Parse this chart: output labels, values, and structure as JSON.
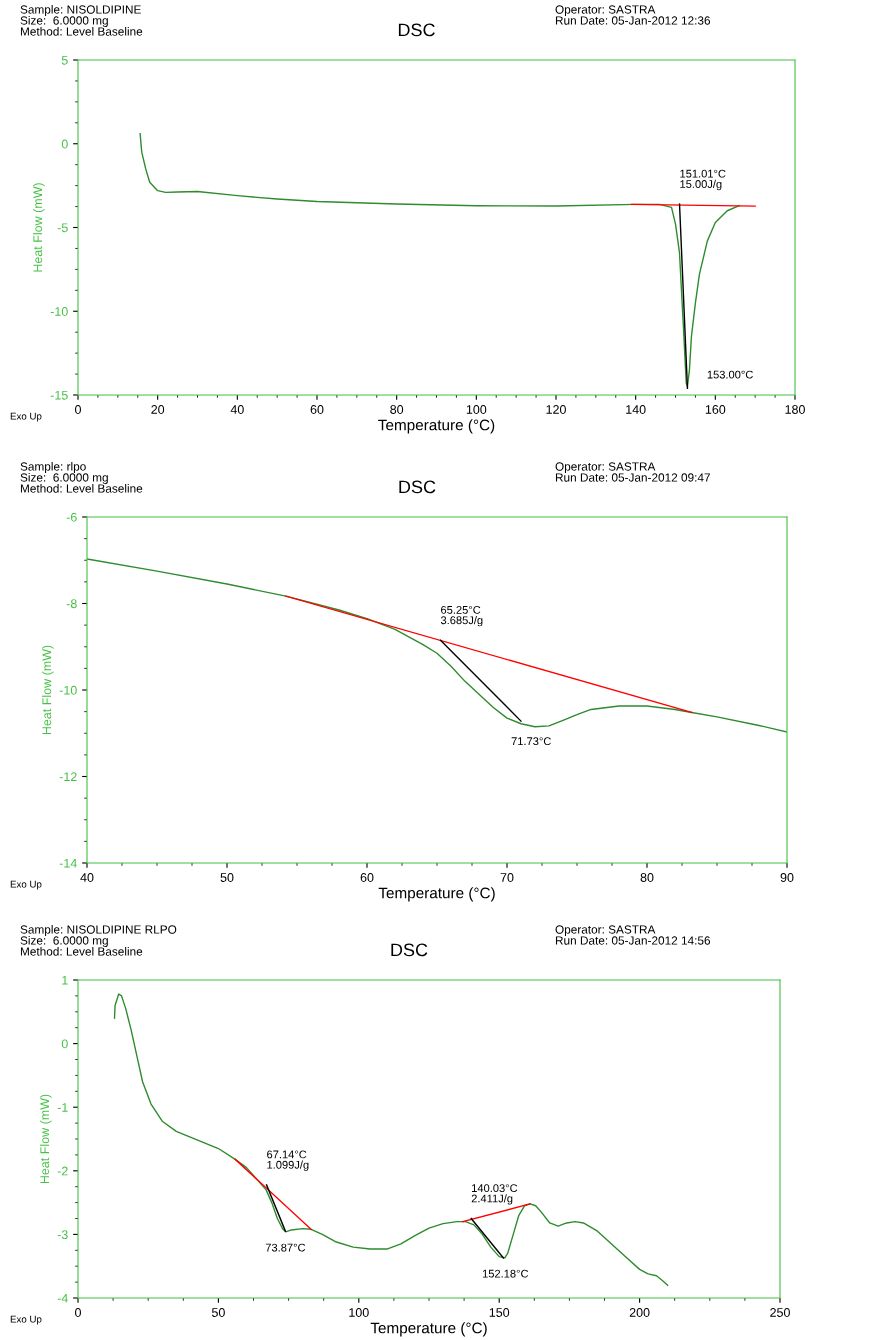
{
  "chart_data": [
    {
      "type": "line",
      "title": "DSC",
      "subtitle": "Sample: NISOLDIPINE\nSize:  6.0000 mg\nMethod: Level Baseline",
      "xlabel": "Temperature (°C)",
      "ylabel": "Heat Flow (mW)",
      "xlim": [
        0,
        180
      ],
      "xticks": [
        0,
        20,
        40,
        60,
        80,
        100,
        120,
        140,
        160,
        180
      ],
      "ylim": [
        -15,
        5
      ],
      "yticks": [
        -15,
        -10,
        -5,
        0,
        5
      ],
      "grid": false,
      "legend": false,
      "series": [
        {
          "color": "#2e8b2e",
          "x": [
            15.6,
            16,
            17,
            18,
            20,
            22,
            25,
            30,
            40,
            50,
            60,
            80,
            100,
            120,
            140,
            146,
            149,
            150,
            151,
            152,
            152.7,
            153,
            153.5,
            154,
            155,
            156,
            158,
            160,
            163,
            166
          ],
          "values": [
            0.6,
            -0.5,
            -1.5,
            -2.3,
            -2.8,
            -2.9,
            -2.88,
            -2.85,
            -3.1,
            -3.3,
            -3.45,
            -3.6,
            -3.7,
            -3.72,
            -3.62,
            -3.62,
            -3.8,
            -4.8,
            -6.5,
            -11,
            -14.3,
            -14.5,
            -13.5,
            -11.5,
            -9.5,
            -7.8,
            -5.8,
            -4.7,
            -4.0,
            -3.7
          ]
        },
        {
          "color": "#ff0000",
          "x": [
            139,
            170
          ],
          "values": [
            -3.62,
            -3.72
          ]
        },
        {
          "color": "#000000",
          "x": [
            151.01,
            153
          ],
          "values": [
            -3.6,
            -14.6
          ]
        }
      ],
      "annotations": [
        {
          "text": "151.01°C\n15.00J/g",
          "x": 151.01,
          "y": -3.6
        },
        {
          "text": "153.00°C",
          "x": 153,
          "y": -14.5
        },
        "Operator: SASTRA\nRun Date: 05-Jan-2012 12:36",
        "Exo Up"
      ]
    },
    {
      "type": "line",
      "title": "DSC",
      "subtitle": "Sample: rlpo\nSize:  6.0000 mg\nMethod: Level Baseline",
      "xlabel": "Temperature (°C)",
      "ylabel": "Heat Flow (mW)",
      "xlim": [
        40,
        90
      ],
      "xticks": [
        40,
        50,
        60,
        70,
        80,
        90
      ],
      "ylim": [
        -14,
        -6
      ],
      "yticks": [
        -14,
        -12,
        -10,
        -8,
        -6
      ],
      "grid": false,
      "legend": false,
      "series": [
        {
          "color": "#2e8b2e",
          "x": [
            40,
            45,
            50,
            54.2,
            56,
            58,
            60,
            62,
            64,
            65,
            66,
            67,
            68,
            69,
            70,
            71,
            72,
            73,
            74,
            75,
            76,
            78,
            80,
            82,
            83.2,
            85,
            88,
            90
          ],
          "values": [
            -6.97,
            -7.25,
            -7.55,
            -7.83,
            -7.98,
            -8.15,
            -8.35,
            -8.6,
            -8.95,
            -9.15,
            -9.45,
            -9.8,
            -10.1,
            -10.4,
            -10.65,
            -10.78,
            -10.85,
            -10.83,
            -10.7,
            -10.57,
            -10.45,
            -10.37,
            -10.37,
            -10.45,
            -10.52,
            -10.62,
            -10.82,
            -10.97
          ]
        },
        {
          "color": "#ff0000",
          "x": [
            54.2,
            83.2
          ],
          "values": [
            -7.83,
            -10.52
          ]
        },
        {
          "color": "#000000",
          "x": [
            65.25,
            71
          ],
          "values": [
            -8.85,
            -10.72
          ]
        }
      ],
      "annotations": [
        {
          "text": "65.25°C\n3.685J/g",
          "x": 65.25,
          "y": -8.85
        },
        {
          "text": "71.73°C",
          "x": 71.73,
          "y": -10.82
        },
        "Operator: SASTRA\nRun Date: 05-Jan-2012 09:47",
        "Exo Up"
      ]
    },
    {
      "type": "line",
      "title": "DSC",
      "subtitle": "Sample: NISOLDIPINE RLPO\nSize:  6.0000 mg\nMethod: Level Baseline",
      "xlabel": "Temperature (°C)",
      "ylabel": "Heat Flow (mW)",
      "xlim": [
        0,
        250
      ],
      "xticks": [
        0,
        50,
        100,
        150,
        200,
        250
      ],
      "ylim": [
        -4,
        1
      ],
      "yticks": [
        -4,
        -3,
        -2,
        -1,
        0,
        1
      ],
      "grid": false,
      "legend": false,
      "series": [
        {
          "color": "#2e8b2e",
          "x": [
            13,
            13.2,
            14.5,
            15.5,
            17,
            19,
            21,
            23,
            26,
            30,
            35,
            40,
            45,
            50,
            56,
            60,
            64,
            67,
            69,
            71,
            73,
            74,
            76,
            80,
            83,
            87,
            92,
            98,
            104,
            110,
            115,
            120,
            125,
            130,
            135,
            138,
            141,
            144,
            147,
            150,
            152,
            153,
            155,
            157,
            159,
            161,
            163,
            165,
            168,
            171,
            174,
            177,
            180,
            185,
            190,
            195,
            200,
            203,
            206,
            208,
            210
          ],
          "values": [
            0.4,
            0.6,
            0.78,
            0.75,
            0.55,
            0.2,
            -0.2,
            -0.6,
            -0.95,
            -1.22,
            -1.38,
            -1.47,
            -1.56,
            -1.65,
            -1.82,
            -1.95,
            -2.15,
            -2.3,
            -2.5,
            -2.75,
            -2.92,
            -2.96,
            -2.93,
            -2.91,
            -2.92,
            -3.0,
            -3.12,
            -3.2,
            -3.23,
            -3.23,
            -3.15,
            -3.02,
            -2.9,
            -2.83,
            -2.8,
            -2.8,
            -2.85,
            -3.0,
            -3.2,
            -3.35,
            -3.37,
            -3.3,
            -3.0,
            -2.7,
            -2.55,
            -2.52,
            -2.55,
            -2.65,
            -2.82,
            -2.87,
            -2.82,
            -2.8,
            -2.82,
            -2.95,
            -3.15,
            -3.35,
            -3.55,
            -3.62,
            -3.65,
            -3.72,
            -3.8
          ]
        },
        {
          "color": "#ff0000",
          "x": [
            56,
            83
          ],
          "values": [
            -1.82,
            -2.92
          ]
        },
        {
          "color": "#000000",
          "x": [
            67.14,
            73.87
          ],
          "values": [
            -2.22,
            -2.95
          ]
        },
        {
          "color": "#ff0000",
          "x": [
            137,
            161
          ],
          "values": [
            -2.8,
            -2.52
          ]
        },
        {
          "color": "#000000",
          "x": [
            140.03,
            151.5
          ],
          "values": [
            -2.75,
            -3.37
          ]
        }
      ],
      "annotations": [
        {
          "text": "67.14°C\n1.099J/g",
          "x": 67.14,
          "y": -2.22
        },
        {
          "text": "73.87°C",
          "x": 73.87,
          "y": -2.96
        },
        {
          "text": "140.03°C\n2.411J/g",
          "x": 140.03,
          "y": -2.75
        },
        {
          "text": "152.18°C",
          "x": 152.18,
          "y": -3.37
        },
        "Operator: SASTRA\nRun Date: 05-Jan-2012 14:56",
        "Exo Up"
      ]
    }
  ]
}
